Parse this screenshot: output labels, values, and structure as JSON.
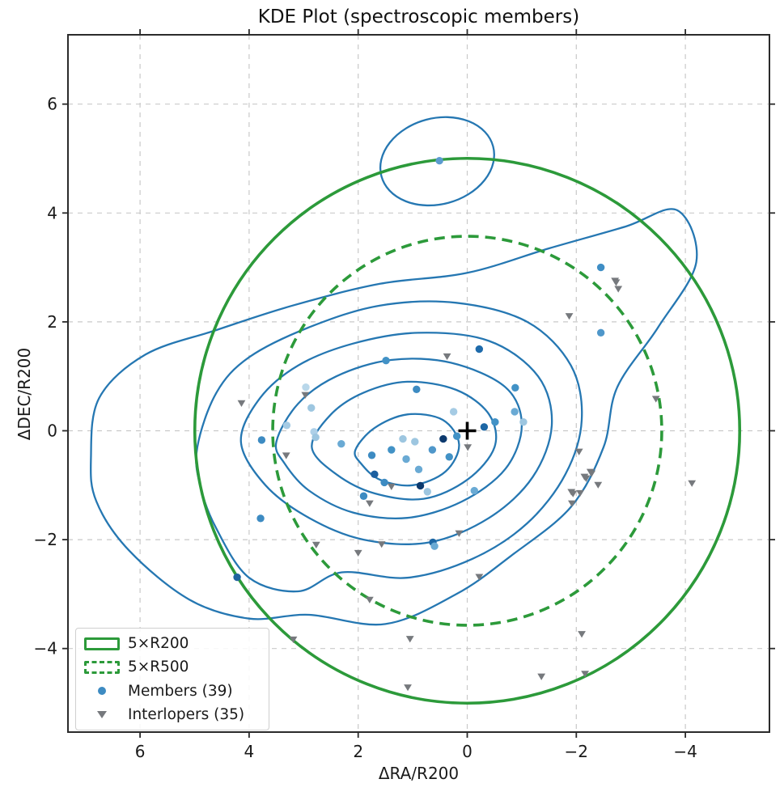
{
  "title": "KDE Plot (spectroscopic members)",
  "axes": {
    "xlabel": "ΔRA/R200",
    "ylabel": "ΔDEC/R200",
    "x_ticks": [
      6,
      4,
      2,
      0,
      -2,
      -4
    ],
    "x_tick_labels": [
      "6",
      "4",
      "2",
      "0",
      "−2",
      "−4"
    ],
    "y_ticks": [
      6,
      4,
      2,
      0,
      -2,
      -4
    ],
    "y_tick_labels": [
      "6",
      "4",
      "2",
      "0",
      "−2",
      "−4"
    ],
    "xlim": [
      7.3,
      -5.55
    ],
    "ylim": [
      -5.55,
      7.3
    ],
    "x_axis_inverted": true,
    "grid": "dashed"
  },
  "legend": {
    "position": "lower left",
    "items": [
      {
        "label": "5×R200",
        "swatch": "solid-green-outline"
      },
      {
        "label": "5×R500",
        "swatch": "dashed-green-outline"
      },
      {
        "label": "Members (39)",
        "swatch": "blue-dot"
      },
      {
        "label": "Interlopers (35)",
        "swatch": "gray-triangle-down"
      }
    ]
  },
  "colors": {
    "circle_green": "#2c9a3a",
    "contour_blue": "#2577b2",
    "interloper_gray": "#76797d",
    "member_blue_mid": "#3d8bc2",
    "grid_gray": "#c9c9c9",
    "axis_dark": "#2b2b2b",
    "text": "#1a1a1a",
    "center_marker": "#000000"
  },
  "chart_data": {
    "type": "scatter",
    "title": "KDE Plot (spectroscopic members)",
    "xlabel": "ΔRA/R200",
    "ylabel": "ΔDEC/R200",
    "series": [
      {
        "name": "Members (39)",
        "marker": "circle",
        "count": 39,
        "points": [
          [
            0.51,
            4.96,
            "#5b9bd0"
          ],
          [
            -2.45,
            3.0,
            "#3f8ec5"
          ],
          [
            -2.45,
            1.8,
            "#4f97ca"
          ],
          [
            -0.22,
            1.5,
            "#1f6bab"
          ],
          [
            1.49,
            1.29,
            "#4292c6"
          ],
          [
            0.93,
            0.76,
            "#3d8bc2"
          ],
          [
            -0.88,
            0.79,
            "#4292c6"
          ],
          [
            2.96,
            0.8,
            "#b9d7ea"
          ],
          [
            2.86,
            0.42,
            "#9dc6e0"
          ],
          [
            -0.87,
            0.35,
            "#6aaad4"
          ],
          [
            3.31,
            0.1,
            "#a5cbe4"
          ],
          [
            -1.03,
            0.16,
            "#9dc6e0"
          ],
          [
            -0.51,
            0.16,
            "#4292c6"
          ],
          [
            -0.31,
            0.07,
            "#1d67a5"
          ],
          [
            2.81,
            -0.02,
            "#aed0e8"
          ],
          [
            2.78,
            -0.12,
            "#9dc6e0"
          ],
          [
            3.77,
            -0.17,
            "#3d8bc2"
          ],
          [
            2.31,
            -0.24,
            "#6aaad4"
          ],
          [
            0.96,
            -0.2,
            "#9dc6e0"
          ],
          [
            0.44,
            -0.15,
            "#0d3a6e"
          ],
          [
            0.19,
            -0.1,
            "#4292c6"
          ],
          [
            1.39,
            -0.35,
            "#4292c6"
          ],
          [
            0.64,
            -0.35,
            "#4f97ca"
          ],
          [
            1.75,
            -0.45,
            "#3d8bc2"
          ],
          [
            0.89,
            -0.71,
            "#6aaad4"
          ],
          [
            1.7,
            -0.8,
            "#1b5fa0"
          ],
          [
            0.86,
            -1.01,
            "#0d3a6e"
          ],
          [
            0.73,
            -1.12,
            "#9dc6e0"
          ],
          [
            -0.13,
            -1.1,
            "#6aaad4"
          ],
          [
            1.9,
            -1.2,
            "#3d8bc2"
          ],
          [
            3.79,
            -1.61,
            "#3d8bc2"
          ],
          [
            0.63,
            -2.05,
            "#1d67a5"
          ],
          [
            0.6,
            -2.12,
            "#6aaad4"
          ],
          [
            4.22,
            -2.69,
            "#20639f"
          ],
          [
            1.18,
            -0.15,
            "#9dc6e0"
          ],
          [
            0.33,
            -0.48,
            "#4292c6"
          ],
          [
            1.12,
            -0.52,
            "#6aaad4"
          ],
          [
            1.52,
            -0.95,
            "#3d8bc2"
          ],
          [
            0.25,
            0.35,
            "#a5cbe4"
          ]
        ]
      },
      {
        "name": "Interlopers (35)",
        "marker": "triangle-down",
        "count": 35,
        "points": [
          [
            0.37,
            1.37
          ],
          [
            2.97,
            0.66
          ],
          [
            4.14,
            0.51
          ],
          [
            -0.01,
            -0.3
          ],
          [
            3.32,
            -0.45
          ],
          [
            -2.05,
            -0.38
          ],
          [
            -2.26,
            -0.75
          ],
          [
            -2.15,
            -0.84
          ],
          [
            -2.4,
            -0.99
          ],
          [
            -1.91,
            -1.12
          ],
          [
            -2.07,
            -1.14
          ],
          [
            -1.92,
            -1.33
          ],
          [
            -4.12,
            -0.96
          ],
          [
            -3.46,
            0.59
          ],
          [
            -2.71,
            2.76
          ],
          [
            -2.77,
            2.61
          ],
          [
            -1.87,
            2.11
          ],
          [
            1.79,
            -1.33
          ],
          [
            1.39,
            -1.02
          ],
          [
            0.15,
            -1.88
          ],
          [
            2.77,
            -2.09
          ],
          [
            1.57,
            -2.08
          ],
          [
            2.0,
            -2.24
          ],
          [
            -0.22,
            -2.68
          ],
          [
            1.79,
            -3.1
          ],
          [
            1.05,
            -3.82
          ],
          [
            3.19,
            -3.83
          ],
          [
            -2.1,
            -3.73
          ],
          [
            -1.36,
            -4.51
          ],
          [
            -2.16,
            -4.46
          ],
          [
            1.09,
            -4.71
          ],
          [
            -2.28,
            -0.78
          ],
          [
            -2.18,
            -0.87
          ],
          [
            -1.94,
            -1.15
          ],
          [
            -2.73,
            2.73
          ]
        ]
      }
    ],
    "overlays": {
      "center_marker": {
        "symbol": "+",
        "x": 0,
        "y": 0
      },
      "circles": [
        {
          "label": "5×R200",
          "cx": 0,
          "cy": 0,
          "radius": 5.0,
          "style": "solid"
        },
        {
          "label": "5×R500",
          "cx": 0,
          "cy": 0,
          "radius": 3.57,
          "style": "dashed"
        }
      ],
      "kde_contours": {
        "levels": [
          [
            [
              6.9,
              -0.5
            ],
            [
              6.75,
              0.6
            ],
            [
              5.9,
              1.4
            ],
            [
              4.6,
              1.85
            ],
            [
              3.2,
              2.3
            ],
            [
              1.6,
              2.7
            ],
            [
              0.0,
              2.9
            ],
            [
              -1.5,
              3.35
            ],
            [
              -2.9,
              3.75
            ],
            [
              -3.85,
              4.05
            ],
            [
              -4.2,
              3.1
            ],
            [
              -3.5,
              1.9
            ],
            [
              -2.75,
              0.8
            ],
            [
              -2.5,
              -0.3
            ],
            [
              -1.9,
              -1.4
            ],
            [
              -0.8,
              -2.3
            ],
            [
              0.2,
              -3.0
            ],
            [
              1.5,
              -3.55
            ],
            [
              2.9,
              -3.38
            ],
            [
              4.0,
              -3.45
            ],
            [
              5.1,
              -3.1
            ],
            [
              6.2,
              -2.2
            ],
            [
              6.8,
              -1.3
            ]
          ],
          [
            [
              4.95,
              -0.3
            ],
            [
              4.6,
              0.7
            ],
            [
              4.0,
              1.35
            ],
            [
              2.9,
              1.9
            ],
            [
              1.6,
              2.3
            ],
            [
              0.2,
              2.35
            ],
            [
              -1.1,
              2.0
            ],
            [
              -1.9,
              1.2
            ],
            [
              -2.1,
              0.2
            ],
            [
              -1.8,
              -0.8
            ],
            [
              -1.1,
              -1.7
            ],
            [
              -0.1,
              -2.35
            ],
            [
              1.1,
              -2.7
            ],
            [
              2.3,
              -2.6
            ],
            [
              3.1,
              -2.95
            ],
            [
              4.0,
              -2.7
            ],
            [
              4.6,
              -1.8
            ],
            [
              4.9,
              -1.0
            ]
          ],
          [
            [
              4.15,
              -0.2
            ],
            [
              3.8,
              0.6
            ],
            [
              3.1,
              1.2
            ],
            [
              2.1,
              1.6
            ],
            [
              0.9,
              1.8
            ],
            [
              -0.4,
              1.65
            ],
            [
              -1.3,
              1.0
            ],
            [
              -1.55,
              0.1
            ],
            [
              -1.2,
              -0.85
            ],
            [
              -0.4,
              -1.6
            ],
            [
              0.7,
              -2.05
            ],
            [
              1.9,
              -2.0
            ],
            [
              2.9,
              -1.6
            ],
            [
              3.7,
              -1.0
            ]
          ],
          [
            [
              3.5,
              -0.2
            ],
            [
              3.1,
              0.5
            ],
            [
              2.4,
              1.0
            ],
            [
              1.4,
              1.3
            ],
            [
              0.3,
              1.25
            ],
            [
              -0.7,
              0.8
            ],
            [
              -1.0,
              0.1
            ],
            [
              -0.7,
              -0.7
            ],
            [
              0.1,
              -1.3
            ],
            [
              1.1,
              -1.6
            ],
            [
              2.1,
              -1.5
            ],
            [
              2.9,
              -1.1
            ],
            [
              3.35,
              -0.6
            ]
          ],
          [
            [
              2.85,
              -0.3
            ],
            [
              2.5,
              0.3
            ],
            [
              1.9,
              0.7
            ],
            [
              1.1,
              0.9
            ],
            [
              0.2,
              0.75
            ],
            [
              -0.4,
              0.3
            ],
            [
              -0.5,
              -0.3
            ],
            [
              0.0,
              -0.9
            ],
            [
              0.8,
              -1.25
            ],
            [
              1.7,
              -1.15
            ],
            [
              2.4,
              -0.8
            ]
          ],
          [
            [
              2.05,
              -0.35
            ],
            [
              1.7,
              0.05
            ],
            [
              1.1,
              0.3
            ],
            [
              0.45,
              0.2
            ],
            [
              0.15,
              -0.25
            ],
            [
              0.4,
              -0.75
            ],
            [
              1.0,
              -1.0
            ],
            [
              1.6,
              -0.9
            ],
            [
              1.95,
              -0.6
            ]
          ]
        ]
      },
      "detached_contour": {
        "cx": 0.55,
        "cy": 4.95,
        "rx": 1.06,
        "ry": 0.79,
        "rotation_deg": -15
      }
    }
  }
}
